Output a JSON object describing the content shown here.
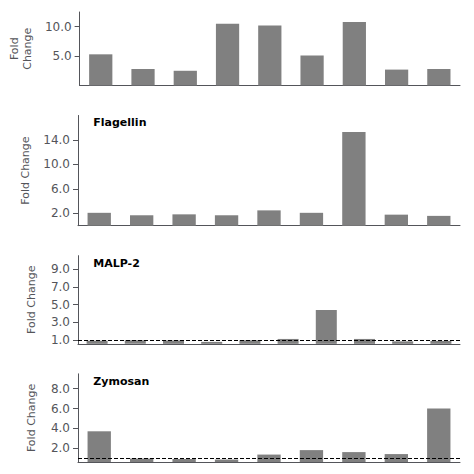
{
  "chart_data": [
    {
      "type": "bar",
      "ylabel": "Fold\nChange",
      "categories": [
        null,
        null,
        null,
        null,
        null,
        null,
        null,
        null,
        null
      ],
      "values": [
        5.3,
        2.8,
        2.5,
        10.5,
        10.2,
        5.1,
        10.8,
        2.7,
        2.8
      ],
      "color": "#808080",
      "ylim": [
        0,
        12.5
      ],
      "yticks": [
        {
          "value": 5.0,
          "label": "5.0"
        },
        {
          "value": 10.0,
          "label": "10.0"
        }
      ],
      "grid": false,
      "tick_labels": "y"
    },
    {
      "type": "bar",
      "ylabel": "Fold Change",
      "annotations": [
        "Flagellin"
      ],
      "categories": [
        null,
        null,
        null,
        null,
        null,
        null,
        null,
        null,
        null
      ],
      "values": [
        2.1,
        1.7,
        1.85,
        1.7,
        2.5,
        2.1,
        15.3,
        1.8,
        1.6
      ],
      "color": "#808080",
      "ylim": [
        0,
        18
      ],
      "yticks": [
        {
          "value": 2.0,
          "label": "2.0"
        },
        {
          "value": 6.0,
          "label": "6.0"
        },
        {
          "value": 10.0,
          "label": "10.0"
        },
        {
          "value": 14.0,
          "label": "14.0"
        }
      ],
      "grid": false,
      "tick_labels": "y"
    },
    {
      "type": "bar",
      "ylabel": "Fold Change",
      "annotations": [
        "MALP-2"
      ],
      "categories": [
        null,
        null,
        null,
        null,
        null,
        null,
        null,
        null,
        null,
        null
      ],
      "values": [
        0.95,
        1.0,
        0.98,
        0.82,
        1.0,
        1.15,
        4.4,
        1.15,
        0.88,
        0.93
      ],
      "color": "#808080",
      "hline": 1.0,
      "ylim": [
        0.6,
        10.5
      ],
      "yticks": [
        {
          "value": 1.0,
          "label": "1.0"
        },
        {
          "value": 3.0,
          "label": "3.0"
        },
        {
          "value": 5.0,
          "label": "5.0"
        },
        {
          "value": 7.0,
          "label": "7.0"
        },
        {
          "value": 9.0,
          "label": "9.0"
        }
      ],
      "grid": false,
      "tick_labels": "y"
    },
    {
      "type": "bar",
      "ylabel": "Fold Change",
      "annotations": [
        "Zymosan"
      ],
      "categories": [
        null,
        null,
        null,
        null,
        null,
        null,
        null,
        null,
        null
      ],
      "values": [
        3.7,
        0.95,
        0.9,
        0.85,
        1.35,
        1.8,
        1.6,
        1.4,
        6.0
      ],
      "color": "#808080",
      "hline": 1.0,
      "ylim": [
        0.6,
        9.5
      ],
      "yticks": [
        {
          "value": 2.0,
          "label": "2.0"
        },
        {
          "value": 4.0,
          "label": "4.0"
        },
        {
          "value": 6.0,
          "label": "6.0"
        },
        {
          "value": 8.0,
          "label": "8.0"
        }
      ],
      "grid": false,
      "tick_labels": "y"
    }
  ]
}
